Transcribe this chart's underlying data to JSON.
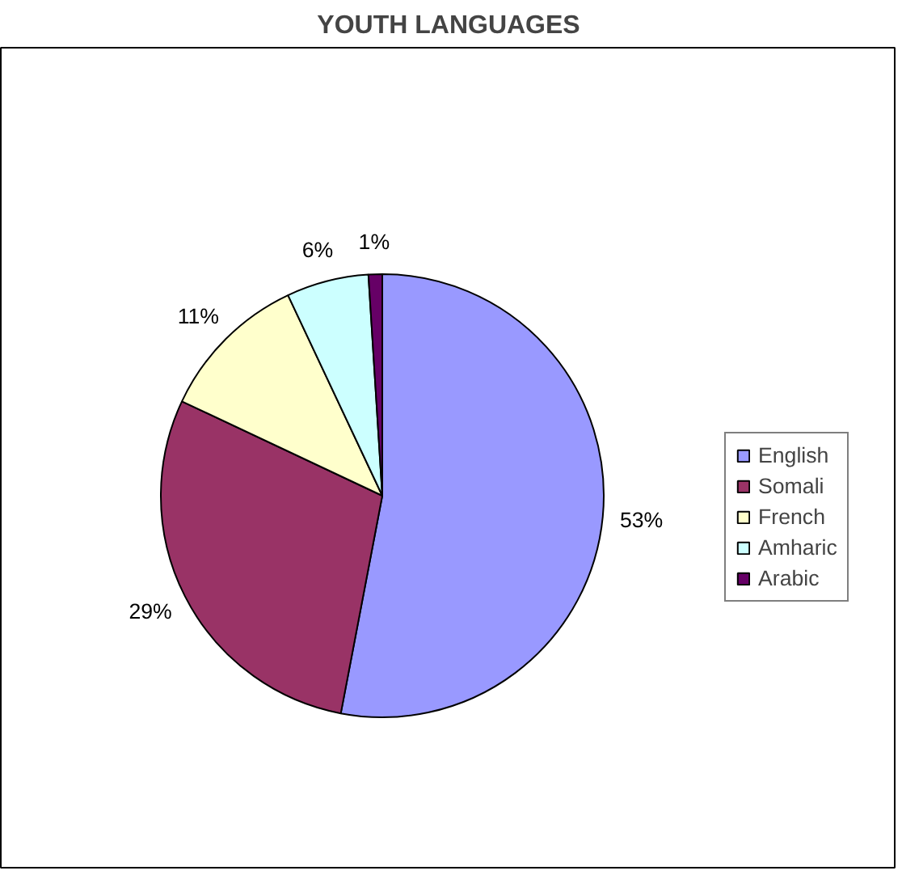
{
  "chart_data": {
    "type": "pie",
    "title": "YOUTH LANGUAGES",
    "categories": [
      "English",
      "Somali",
      "French",
      "Amharic",
      "Arabic"
    ],
    "values": [
      53,
      29,
      11,
      6,
      1
    ],
    "colors": [
      "#9999ff",
      "#993366",
      "#ffffcc",
      "#ccffff",
      "#660066"
    ],
    "value_labels": [
      "53%",
      "29%",
      "11%",
      "6%",
      "1%"
    ],
    "legend": "right"
  }
}
